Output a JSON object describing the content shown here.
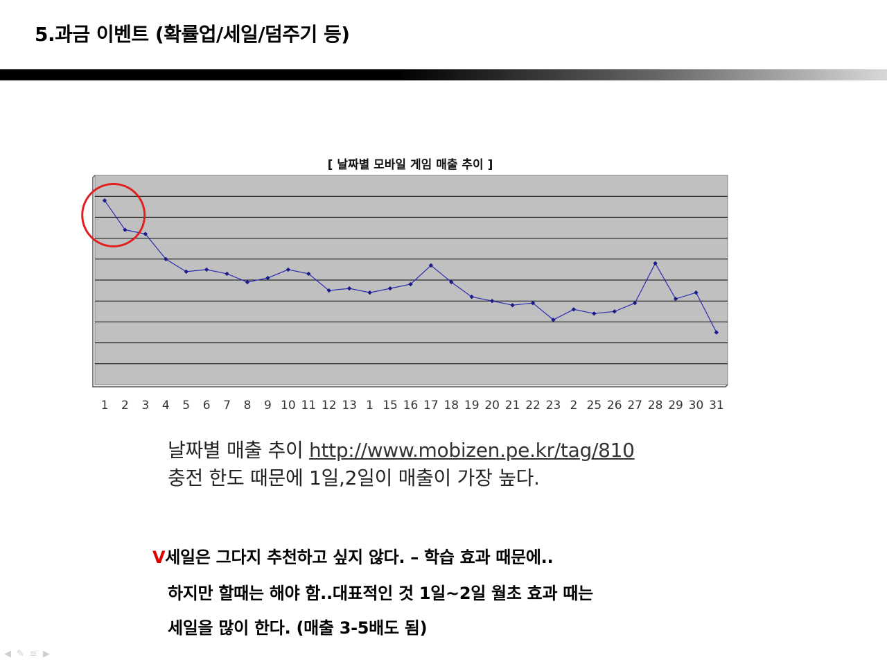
{
  "slide": {
    "title": "5.과금 이벤트 (확률업/세일/덤주기 등)"
  },
  "chart_data": {
    "type": "line",
    "title": "[ 날짜별 모바일 게임 매출 추이 ]",
    "xlabel": "",
    "ylabel": "",
    "categories": [
      "1",
      "2",
      "3",
      "4",
      "5",
      "6",
      "7",
      "8",
      "9",
      "10",
      "11",
      "12",
      "13",
      "1",
      "15",
      "16",
      "17",
      "18",
      "19",
      "20",
      "21",
      "22",
      "23",
      "2",
      "25",
      "26",
      "27",
      "28",
      "29",
      "30",
      "31"
    ],
    "series": [
      {
        "values": [
          8.8,
          7.4,
          7.2,
          6.0,
          5.4,
          5.5,
          5.3,
          4.9,
          5.1,
          5.5,
          5.3,
          4.5,
          4.6,
          4.4,
          4.6,
          4.8,
          5.7,
          4.9,
          4.2,
          4.0,
          3.8,
          3.9,
          3.1,
          3.6,
          3.4,
          3.5,
          3.9,
          5.8,
          4.1,
          4.4,
          2.5
        ],
        "color": "#2b2bb0"
      }
    ],
    "ylim": [
      0,
      10
    ],
    "grid": true,
    "y_tick_labels": false,
    "plot_background": "#c0c0c0",
    "highlight": {
      "category_index": [
        0,
        1
      ],
      "color": "#e02020"
    }
  },
  "captions": {
    "line1_text": "날짜별 매출 추이 ",
    "line1_link": "http://www.mobizen.pe.kr/tag/810",
    "line2_text": "충전 한도 때문에 1일,2일이 매출이 가장 높다."
  },
  "notes": {
    "mark": "V",
    "line1": "세일은 그다지 추천하고 싶지 않다. – 학습 효과 때문에..",
    "line2": "하지만 할때는 해야 함..대표적인 것 1일~2일 월초 효과 때는",
    "line3": "세일을 많이 한다. (매출 3-5배도 됨)"
  },
  "nav": {
    "icons": [
      "prev-icon",
      "pen-icon",
      "menu-icon",
      "next-icon"
    ]
  }
}
